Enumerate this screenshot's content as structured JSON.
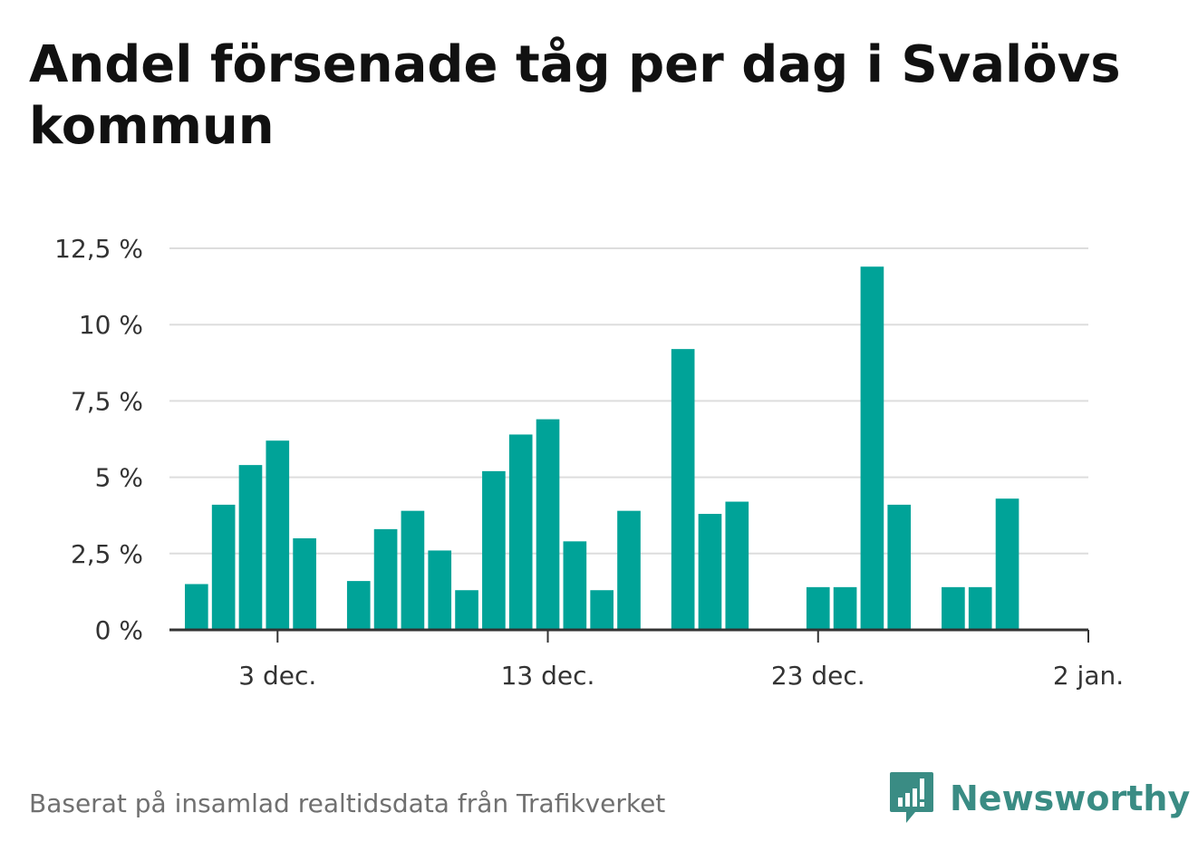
{
  "title": "Andel försenade tåg per dag i Svalövs kommun",
  "footer": {
    "source": "Baserat på insamlad realtidsdata från Trafikverket"
  },
  "brand": {
    "name": "Newsworthy",
    "icon": "newsworthy-logo-icon",
    "color": "#3a8c84"
  },
  "chart_data": {
    "type": "bar",
    "title": "Andel försenade tåg per dag i Svalövs kommun",
    "bar_color": "#00a398",
    "grid": true,
    "ylim": [
      0,
      12.5
    ],
    "y_ticks": [
      {
        "value": 0,
        "label": "0 %"
      },
      {
        "value": 2.5,
        "label": "2,5 %"
      },
      {
        "value": 5,
        "label": "5 %"
      },
      {
        "value": 7.5,
        "label": "7,5 %"
      },
      {
        "value": 10,
        "label": "10 %"
      },
      {
        "value": 12.5,
        "label": "12,5 %"
      }
    ],
    "x_ticks": [
      {
        "date": "2018-12-03",
        "label": "3 dec."
      },
      {
        "date": "2018-12-13",
        "label": "13 dec."
      },
      {
        "date": "2018-12-23",
        "label": "23 dec."
      },
      {
        "date": "2019-01-02",
        "label": "2 jan."
      }
    ],
    "x_range": [
      "2018-11-29",
      "2019-01-02"
    ],
    "x": [
      "2018-11-30",
      "2018-12-01",
      "2018-12-02",
      "2018-12-03",
      "2018-12-04",
      "2018-12-05",
      "2018-12-06",
      "2018-12-07",
      "2018-12-08",
      "2018-12-09",
      "2018-12-10",
      "2018-12-11",
      "2018-12-12",
      "2018-12-13",
      "2018-12-14",
      "2018-12-15",
      "2018-12-16",
      "2018-12-17",
      "2018-12-18",
      "2018-12-19",
      "2018-12-20",
      "2018-12-21",
      "2018-12-22",
      "2018-12-23",
      "2018-12-24",
      "2018-12-25",
      "2018-12-26",
      "2018-12-27",
      "2018-12-28",
      "2018-12-29",
      "2018-12-30",
      "2018-12-31",
      "2019-01-01"
    ],
    "values": [
      1.5,
      4.1,
      5.4,
      6.2,
      3.0,
      null,
      1.6,
      3.3,
      3.9,
      2.6,
      1.3,
      5.2,
      6.4,
      6.9,
      2.9,
      1.3,
      3.9,
      null,
      9.2,
      3.8,
      4.2,
      null,
      null,
      1.4,
      1.4,
      11.9,
      4.1,
      null,
      1.4,
      1.4,
      4.3,
      null,
      null
    ]
  }
}
